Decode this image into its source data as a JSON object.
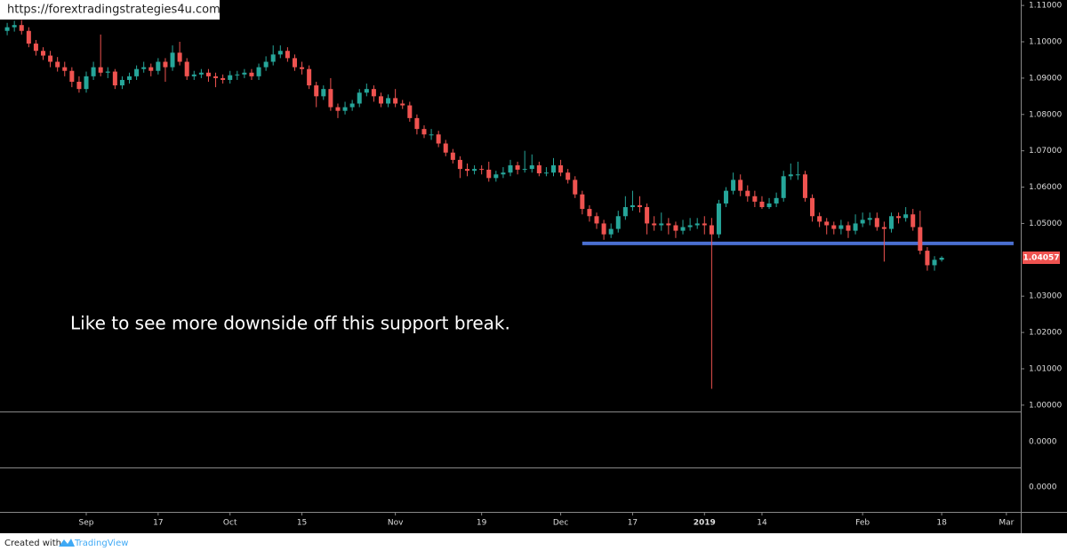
{
  "chart_data": {
    "type": "candlestick",
    "watermark": "https://forextradingstrategies4u.com",
    "annotation": "Like to see more downside off this support break.",
    "footer": {
      "prefix": "Created with",
      "brand": "TradingView"
    },
    "up_color": "#26a69a",
    "down_color": "#ef5350",
    "xlim": [
      -1,
      141
    ],
    "ylim": [
      0.9985,
      1.1115
    ],
    "yticks": [
      {
        "value": 1.11,
        "label": "1.11000"
      },
      {
        "value": 1.1,
        "label": "1.10000"
      },
      {
        "value": 1.09,
        "label": "1.09000"
      },
      {
        "value": 1.08,
        "label": "1.08000"
      },
      {
        "value": 1.07,
        "label": "1.07000"
      },
      {
        "value": 1.06,
        "label": "1.06000"
      },
      {
        "value": 1.05,
        "label": "1.05000"
      },
      {
        "value": 1.03,
        "label": "1.03000"
      },
      {
        "value": 1.02,
        "label": "1.02000"
      },
      {
        "value": 1.01,
        "label": "1.01000"
      },
      {
        "value": 1.0,
        "label": "1.00000"
      }
    ],
    "xticks": [
      {
        "value": 11,
        "label": "Sep"
      },
      {
        "value": 21,
        "label": "17"
      },
      {
        "value": 31,
        "label": "Oct"
      },
      {
        "value": 41,
        "label": "15"
      },
      {
        "value": 54,
        "label": "Nov"
      },
      {
        "value": 66,
        "label": "19"
      },
      {
        "value": 77,
        "label": "Dec"
      },
      {
        "value": 87,
        "label": "17"
      },
      {
        "value": 97,
        "label": "2019"
      },
      {
        "value": 105,
        "label": "14"
      },
      {
        "value": 119,
        "label": "Feb"
      },
      {
        "value": 130,
        "label": "18"
      },
      {
        "value": 139,
        "label": "Mar"
      }
    ],
    "support_line": {
      "value": 1.0445,
      "start": 80,
      "end": 140,
      "color": "#4a6fd0"
    },
    "last_price_color": "#ef5350",
    "indicator_panes": [
      {
        "yticks": [
          {
            "value": 0,
            "label": "0.0000"
          }
        ]
      },
      {
        "yticks": [
          {
            "value": 0,
            "label": "0.0000"
          }
        ]
      }
    ],
    "open": [
      1.103,
      1.104,
      1.1046,
      1.103,
      1.0995,
      1.0975,
      1.0962,
      1.0945,
      1.093,
      1.092,
      1.089,
      1.087,
      1.0905,
      1.093,
      1.0915,
      1.0918,
      1.088,
      1.0895,
      1.0905,
      1.0925,
      1.093,
      1.092,
      1.0945,
      1.093,
      1.097,
      1.0945,
      1.0905,
      1.091,
      1.0915,
      1.0905,
      1.09,
      1.0895,
      1.0908,
      1.091,
      1.0915,
      1.0905,
      1.093,
      1.0945,
      1.0965,
      1.0975,
      1.0955,
      1.093,
      1.0925,
      1.088,
      1.085,
      1.087,
      1.082,
      1.081,
      1.082,
      1.083,
      1.086,
      1.087,
      1.085,
      1.083,
      1.0845,
      1.083,
      1.0825,
      1.079,
      1.076,
      1.0745,
      1.0745,
      1.072,
      1.0695,
      1.0675,
      1.065,
      1.0645,
      1.065,
      1.0648,
      1.0625,
      1.0635,
      1.064,
      1.066,
      1.0648,
      1.065,
      1.066,
      1.0638,
      1.064,
      1.066,
      1.064,
      1.062,
      1.058,
      1.054,
      1.052,
      1.05,
      1.047,
      1.0485,
      1.052,
      1.0545,
      1.055,
      1.0545,
      1.05,
      1.0495,
      1.05,
      1.0495,
      1.048,
      1.049,
      1.0495,
      1.05,
      1.0495,
      1.047,
      1.0555,
      1.059,
      1.062,
      1.059,
      1.0575,
      1.056,
      1.0545,
      1.0555,
      1.057,
      1.063,
      1.0635,
      1.0635,
      1.057,
      1.052,
      1.0505,
      1.0495,
      1.0485,
      1.0495,
      1.048,
      1.05,
      1.051,
      1.0515,
      1.049,
      1.0485,
      1.052,
      1.0515,
      1.0525,
      1.049,
      1.0425,
      1.0385,
      1.04
    ],
    "high": [
      1.1052,
      1.1058,
      1.106,
      1.104,
      1.1005,
      1.0985,
      1.0975,
      1.0958,
      1.0945,
      1.093,
      1.0905,
      1.0918,
      1.0945,
      1.102,
      1.093,
      1.0925,
      1.0905,
      1.0915,
      1.0935,
      1.0945,
      1.094,
      1.0955,
      1.0955,
      1.099,
      1.1,
      1.0955,
      1.092,
      1.0925,
      1.0925,
      1.0915,
      1.091,
      1.092,
      1.092,
      1.0925,
      1.0925,
      1.094,
      1.096,
      1.099,
      1.099,
      1.0985,
      1.0965,
      1.0945,
      1.0935,
      1.089,
      1.088,
      1.09,
      1.083,
      1.0835,
      1.084,
      1.087,
      1.0885,
      1.088,
      1.086,
      1.0855,
      1.087,
      1.084,
      1.0835,
      1.08,
      1.077,
      1.076,
      1.0755,
      1.073,
      1.0705,
      1.0685,
      1.0665,
      1.066,
      1.066,
      1.067,
      1.0645,
      1.0655,
      1.0675,
      1.067,
      1.07,
      1.069,
      1.067,
      1.0655,
      1.068,
      1.0675,
      1.065,
      1.063,
      1.059,
      1.055,
      1.053,
      1.051,
      1.05,
      1.0535,
      1.0575,
      1.059,
      1.0575,
      1.0555,
      1.052,
      1.053,
      1.0515,
      1.0505,
      1.051,
      1.0515,
      1.0515,
      1.052,
      1.0515,
      1.0565,
      1.06,
      1.064,
      1.0635,
      1.0605,
      1.059,
      1.0575,
      1.057,
      1.0585,
      1.0645,
      1.0665,
      1.067,
      1.0645,
      1.058,
      1.053,
      1.0515,
      1.0505,
      1.051,
      1.0505,
      1.0525,
      1.053,
      1.053,
      1.053,
      1.0505,
      1.053,
      1.053,
      1.0545,
      1.054,
      1.0535,
      1.0435,
      1.041,
      1.041
    ],
    "low": [
      1.1018,
      1.1028,
      1.102,
      1.0985,
      1.0962,
      1.095,
      1.093,
      1.0918,
      1.0905,
      1.0875,
      1.086,
      1.086,
      1.0895,
      1.0905,
      1.09,
      1.087,
      1.087,
      1.0885,
      1.0895,
      1.0915,
      1.0905,
      1.091,
      1.089,
      1.092,
      1.0935,
      1.0895,
      1.0895,
      1.09,
      1.089,
      1.0875,
      1.0885,
      1.0885,
      1.0895,
      1.09,
      1.0895,
      1.0895,
      1.092,
      1.0935,
      1.0955,
      1.0945,
      1.092,
      1.091,
      1.087,
      1.082,
      1.084,
      1.081,
      1.079,
      1.08,
      1.081,
      1.082,
      1.085,
      1.0835,
      1.082,
      1.082,
      1.082,
      1.0815,
      1.078,
      1.0745,
      1.0735,
      1.073,
      1.071,
      1.0685,
      1.0665,
      1.0625,
      1.063,
      1.0635,
      1.0635,
      1.0615,
      1.0615,
      1.0625,
      1.063,
      1.0635,
      1.064,
      1.064,
      1.063,
      1.063,
      1.063,
      1.063,
      1.061,
      1.057,
      1.0525,
      1.0505,
      1.0485,
      1.0455,
      1.046,
      1.0475,
      1.051,
      1.0535,
      1.053,
      1.047,
      1.048,
      1.048,
      1.047,
      1.046,
      1.047,
      1.048,
      1.0485,
      1.047,
      1.0045,
      1.046,
      1.0545,
      1.058,
      1.0575,
      1.056,
      1.0545,
      1.054,
      1.054,
      1.0545,
      1.056,
      1.062,
      1.062,
      1.056,
      1.0505,
      1.049,
      1.047,
      1.047,
      1.047,
      1.046,
      1.047,
      1.049,
      1.0495,
      1.048,
      1.0395,
      1.0475,
      1.05,
      1.0505,
      1.048,
      1.0415,
      1.037,
      1.037,
      1.0395
    ],
    "close": [
      1.104,
      1.1046,
      1.103,
      1.0995,
      1.0975,
      1.0962,
      1.0945,
      1.093,
      1.092,
      1.089,
      1.087,
      1.0905,
      1.093,
      1.0915,
      1.0918,
      1.088,
      1.0895,
      1.0905,
      1.0925,
      1.093,
      1.092,
      1.0945,
      1.093,
      1.097,
      1.0945,
      1.0905,
      1.091,
      1.0915,
      1.0905,
      1.09,
      1.0895,
      1.0908,
      1.091,
      1.0915,
      1.0905,
      1.093,
      1.0945,
      1.0965,
      1.0975,
      1.0955,
      1.093,
      1.0925,
      1.088,
      1.085,
      1.087,
      1.082,
      1.081,
      1.082,
      1.083,
      1.086,
      1.087,
      1.085,
      1.083,
      1.0845,
      1.083,
      1.0825,
      1.079,
      1.076,
      1.0745,
      1.0745,
      1.072,
      1.0695,
      1.0675,
      1.065,
      1.0645,
      1.065,
      1.0648,
      1.0625,
      1.0635,
      1.064,
      1.066,
      1.0648,
      1.065,
      1.066,
      1.0638,
      1.064,
      1.066,
      1.064,
      1.062,
      1.058,
      1.054,
      1.052,
      1.05,
      1.047,
      1.0485,
      1.052,
      1.0545,
      1.055,
      1.0545,
      1.05,
      1.0495,
      1.05,
      1.0495,
      1.048,
      1.049,
      1.0495,
      1.05,
      1.0495,
      1.047,
      1.0555,
      1.059,
      1.062,
      1.059,
      1.0575,
      1.056,
      1.0545,
      1.0555,
      1.057,
      1.063,
      1.0635,
      1.0635,
      1.057,
      1.052,
      1.0505,
      1.0495,
      1.0485,
      1.0495,
      1.048,
      1.05,
      1.051,
      1.0515,
      1.049,
      1.0485,
      1.052,
      1.0515,
      1.0525,
      1.049,
      1.0425,
      1.0385,
      1.04,
      1.04057
    ]
  }
}
